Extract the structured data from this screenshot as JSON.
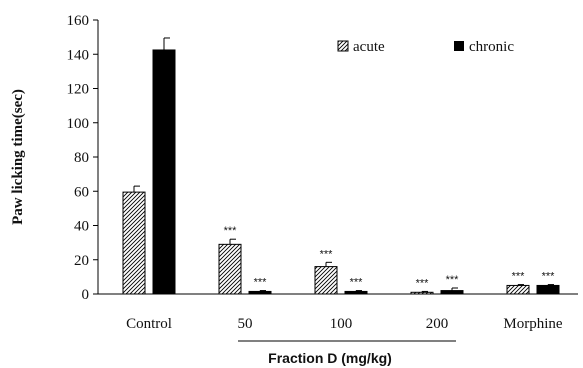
{
  "chart_data": {
    "type": "bar",
    "ylabel": "Paw licking time(sec)",
    "xlabel": "",
    "group_label": "Fraction D (mg/kg)",
    "ylim": [
      0,
      160
    ],
    "yticks": [
      0,
      20,
      40,
      60,
      80,
      100,
      120,
      140,
      160
    ],
    "grid": false,
    "legend_position": "top-right",
    "categories": [
      "Control",
      "50",
      "100",
      "200",
      "Morphine"
    ],
    "series": [
      {
        "name": "acute",
        "pattern": "diagonal-hatch",
        "values": [
          59.5,
          29,
          16,
          1,
          5
        ],
        "errors": [
          3.5,
          3,
          2.5,
          0.5,
          0.5
        ],
        "significance": [
          "",
          "***",
          "***",
          "***",
          "***"
        ]
      },
      {
        "name": "chronic",
        "pattern": "solid",
        "color": "#000000",
        "values": [
          142.5,
          1.5,
          1.5,
          2,
          5
        ],
        "errors": [
          7,
          0.5,
          0.5,
          1.5,
          0.5
        ],
        "significance": [
          "",
          "***",
          "***",
          "***",
          "***"
        ]
      }
    ]
  }
}
